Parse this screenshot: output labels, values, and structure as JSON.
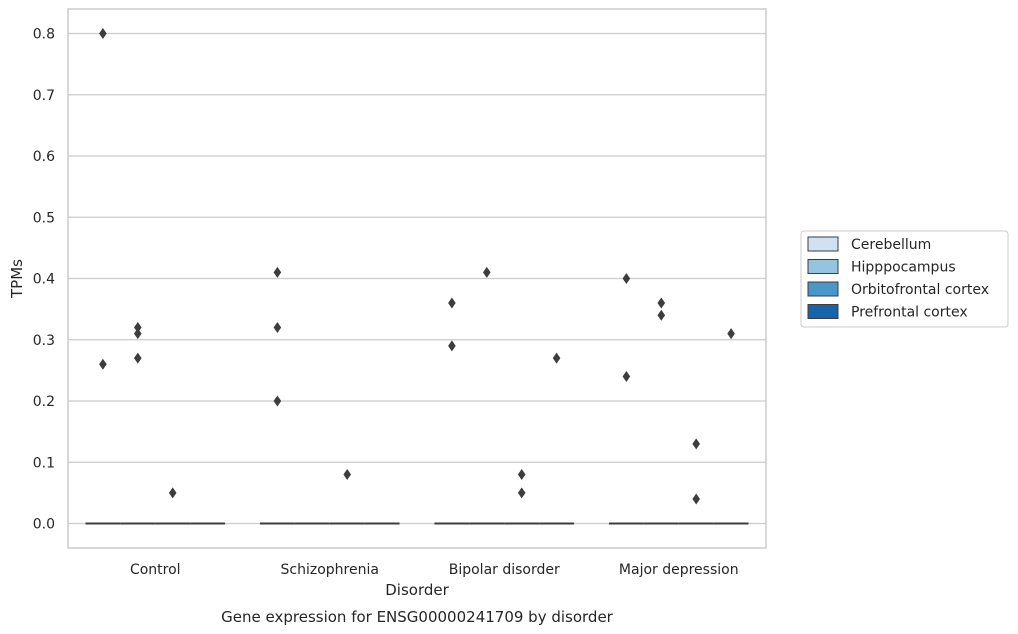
{
  "chart_data": {
    "type": "boxplot",
    "caption": "Gene expression for ENSG00000241709 by disorder",
    "xlabel": "Disorder",
    "ylabel": "TPMs",
    "ylim": [
      -0.04,
      0.84
    ],
    "yticks": [
      0.0,
      0.1,
      0.2,
      0.3,
      0.4,
      0.5,
      0.6,
      0.7,
      0.8
    ],
    "ytick_labels": [
      "0.0",
      "0.1",
      "0.2",
      "0.3",
      "0.4",
      "0.5",
      "0.6",
      "0.7",
      "0.8"
    ],
    "grid": true,
    "legend_position": "right",
    "categories": [
      "Control",
      "Schizophrenia",
      "Bipolar disorder",
      "Major depression"
    ],
    "series": [
      {
        "name": "Cerebellum",
        "color": "#d0e1f2",
        "median": [
          0,
          0,
          0,
          0
        ]
      },
      {
        "name": "Hipppocampus",
        "color": "#94c4df",
        "median": [
          0,
          0,
          0,
          0
        ]
      },
      {
        "name": "Orbitofrontal cortex",
        "color": "#4a98c9",
        "median": [
          0,
          0,
          0,
          0
        ]
      },
      {
        "name": "Prefrontal cortex",
        "color": "#1764ab",
        "median": [
          0,
          0,
          0,
          0
        ]
      }
    ],
    "outliers": [
      {
        "category": 0,
        "series": 0,
        "y": 0.8
      },
      {
        "category": 0,
        "series": 0,
        "y": 0.26
      },
      {
        "category": 0,
        "series": 1,
        "y": 0.32
      },
      {
        "category": 0,
        "series": 1,
        "y": 0.31
      },
      {
        "category": 0,
        "series": 1,
        "y": 0.27
      },
      {
        "category": 0,
        "series": 2,
        "y": 0.05
      },
      {
        "category": 1,
        "series": 0,
        "y": 0.41
      },
      {
        "category": 1,
        "series": 0,
        "y": 0.32
      },
      {
        "category": 1,
        "series": 0,
        "y": 0.2
      },
      {
        "category": 1,
        "series": 2,
        "y": 0.08
      },
      {
        "category": 2,
        "series": 0,
        "y": 0.36
      },
      {
        "category": 2,
        "series": 0,
        "y": 0.29
      },
      {
        "category": 2,
        "series": 1,
        "y": 0.41
      },
      {
        "category": 2,
        "series": 2,
        "y": 0.08
      },
      {
        "category": 2,
        "series": 2,
        "y": 0.05
      },
      {
        "category": 2,
        "series": 3,
        "y": 0.27
      },
      {
        "category": 3,
        "series": 0,
        "y": 0.24
      },
      {
        "category": 3,
        "series": 0,
        "y": 0.4
      },
      {
        "category": 3,
        "series": 1,
        "y": 0.36
      },
      {
        "category": 3,
        "series": 1,
        "y": 0.34
      },
      {
        "category": 3,
        "series": 2,
        "y": 0.13
      },
      {
        "category": 3,
        "series": 2,
        "y": 0.04
      },
      {
        "category": 3,
        "series": 3,
        "y": 0.31
      }
    ]
  }
}
